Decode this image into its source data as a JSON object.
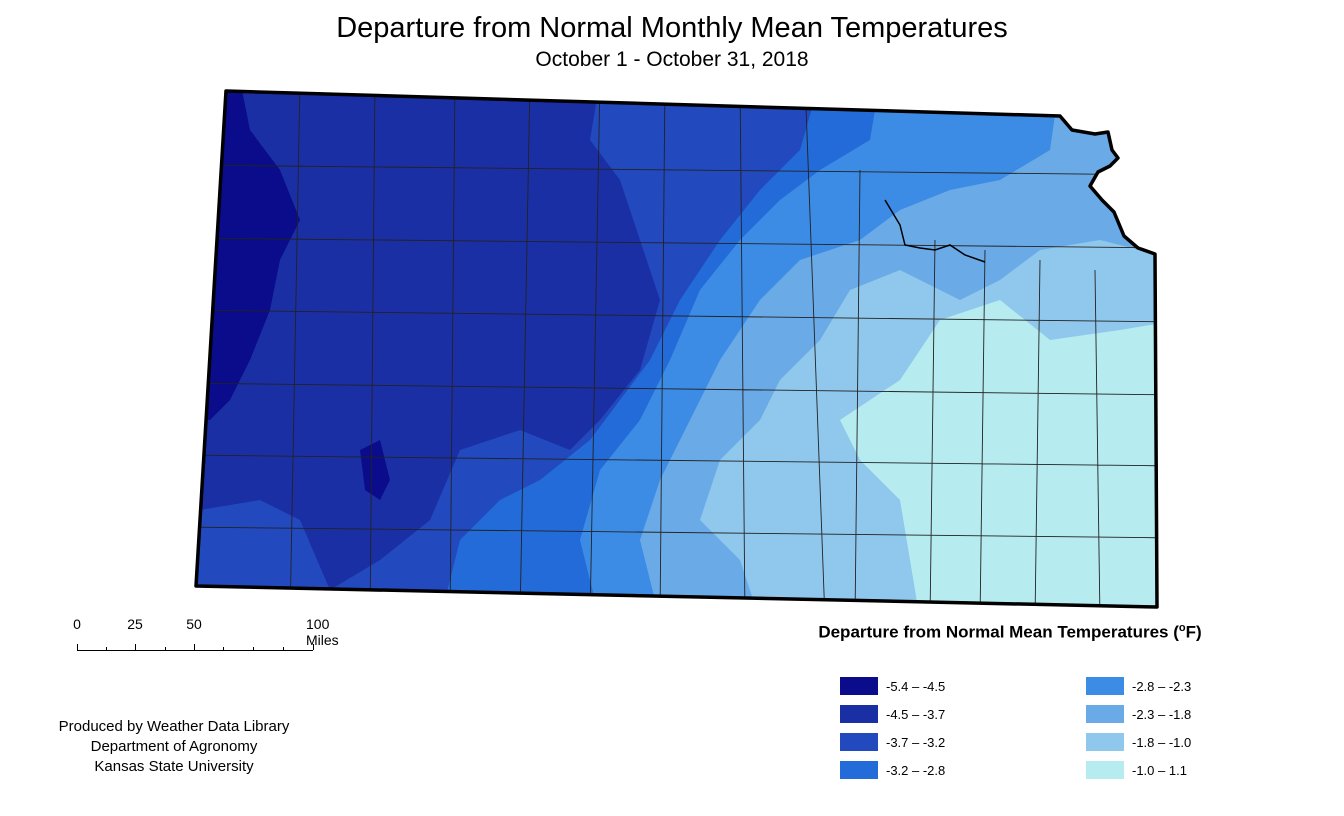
{
  "title": "Departure from Normal Monthly Mean Temperatures",
  "subtitle": "October 1 - October 31, 2018",
  "scale": {
    "labels": [
      "0",
      "25",
      "50",
      "100 Miles"
    ]
  },
  "credits": {
    "line1": "Produced by Weather Data Library",
    "line2": "Department of Agronomy",
    "line3": "Kansas State University"
  },
  "legend": {
    "title": "Departure from Normal Mean Temperatures (",
    "unit_sup": "o",
    "unit_after": "F)",
    "classes": [
      {
        "label": "-5.4 – -4.5",
        "color": "#0a0c8c"
      },
      {
        "label": "-4.5 – -3.7",
        "color": "#1b2fa5"
      },
      {
        "label": "-3.7 – -3.2",
        "color": "#2249be"
      },
      {
        "label": "-3.2 – -2.8",
        "color": "#236bd8"
      },
      {
        "label": "-2.8 – -2.3",
        "color": "#3c8ce6"
      },
      {
        "label": "-2.3 – -1.8",
        "color": "#6aaae6"
      },
      {
        "label": "-1.8 – -1.0",
        "color": "#8fc8ec"
      },
      {
        "label": "-1.0 – 1.1",
        "color": "#b6ebf0"
      }
    ]
  }
}
